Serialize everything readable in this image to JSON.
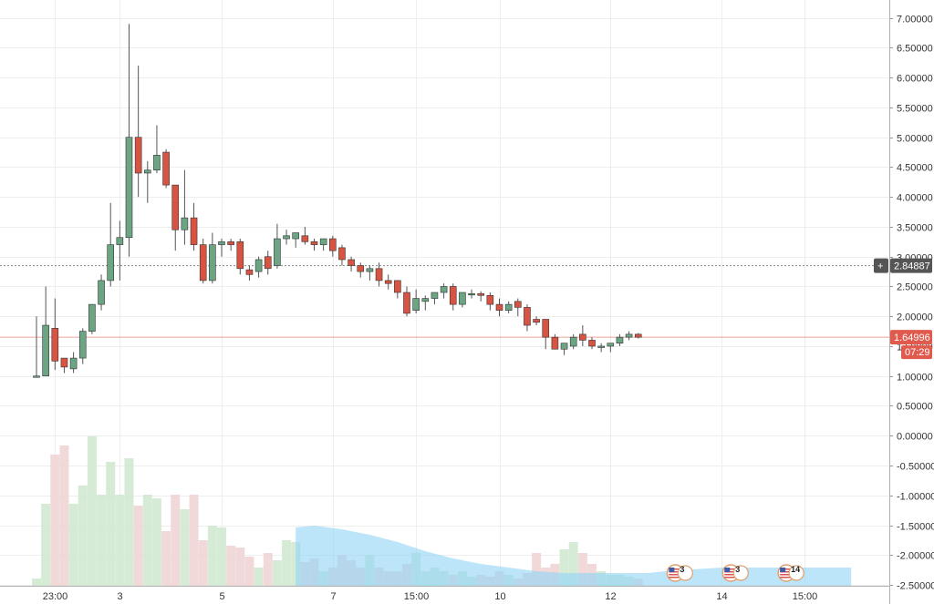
{
  "chart_data": {
    "type": "candlestick",
    "price_axis": {
      "ylim": [
        -2.82,
        7.3
      ],
      "ticks": [
        "7.00000",
        "6.50000",
        "6.00000",
        "5.50000",
        "5.00000",
        "4.50000",
        "4.00000",
        "3.50000",
        "3.00000",
        "2.50000",
        "2.00000",
        "1.50000",
        "1.00000",
        "0.50000",
        "0.00000",
        "-0.50000",
        "-1.00000",
        "-1.50000",
        "-2.00000",
        "-2.50000"
      ]
    },
    "time_axis": {
      "ticks": [
        {
          "i": 2,
          "label": "23:00"
        },
        {
          "i": 9,
          "label": "3"
        },
        {
          "i": 20,
          "label": "5"
        },
        {
          "i": 32,
          "label": "7"
        },
        {
          "i": 41,
          "label": "15:00"
        },
        {
          "i": 50,
          "label": "10"
        },
        {
          "i": 62,
          "label": "12"
        },
        {
          "i": 74,
          "label": "14"
        },
        {
          "i": 83,
          "label": "15:00"
        }
      ]
    },
    "candles": [
      {
        "o": 1.0,
        "h": 2.0,
        "l": 1.0,
        "c": 1.0
      },
      {
        "o": 1.0,
        "h": 2.5,
        "l": 1.0,
        "c": 1.85
      },
      {
        "o": 1.8,
        "h": 2.3,
        "l": 1.1,
        "c": 1.25
      },
      {
        "o": 1.3,
        "h": 1.3,
        "l": 1.05,
        "c": 1.15
      },
      {
        "o": 1.12,
        "h": 1.4,
        "l": 1.05,
        "c": 1.3
      },
      {
        "o": 1.3,
        "h": 1.8,
        "l": 1.2,
        "c": 1.75
      },
      {
        "o": 1.75,
        "h": 2.2,
        "l": 1.7,
        "c": 2.2
      },
      {
        "o": 2.2,
        "h": 2.7,
        "l": 2.1,
        "c": 2.6
      },
      {
        "o": 2.6,
        "h": 3.9,
        "l": 2.5,
        "c": 3.2
      },
      {
        "o": 3.2,
        "h": 3.6,
        "l": 2.6,
        "c": 3.32
      },
      {
        "o": 3.32,
        "h": 6.9,
        "l": 3.0,
        "c": 5.0
      },
      {
        "o": 5.0,
        "h": 6.2,
        "l": 4.0,
        "c": 4.4
      },
      {
        "o": 4.4,
        "h": 4.6,
        "l": 3.9,
        "c": 4.45
      },
      {
        "o": 4.45,
        "h": 5.2,
        "l": 4.4,
        "c": 4.7
      },
      {
        "o": 4.75,
        "h": 4.8,
        "l": 4.15,
        "c": 4.2
      },
      {
        "o": 4.2,
        "h": 4.2,
        "l": 3.1,
        "c": 3.45
      },
      {
        "o": 3.45,
        "h": 4.45,
        "l": 3.2,
        "c": 3.65
      },
      {
        "o": 3.65,
        "h": 3.9,
        "l": 3.1,
        "c": 3.2
      },
      {
        "o": 3.2,
        "h": 3.3,
        "l": 2.55,
        "c": 2.6
      },
      {
        "o": 2.6,
        "h": 3.4,
        "l": 2.55,
        "c": 3.2
      },
      {
        "o": 3.2,
        "h": 3.3,
        "l": 3.0,
        "c": 3.25
      },
      {
        "o": 3.25,
        "h": 3.3,
        "l": 3.1,
        "c": 3.2
      },
      {
        "o": 3.25,
        "h": 3.3,
        "l": 2.7,
        "c": 2.8
      },
      {
        "o": 2.78,
        "h": 2.85,
        "l": 2.6,
        "c": 2.7
      },
      {
        "o": 2.75,
        "h": 3.0,
        "l": 2.65,
        "c": 2.95
      },
      {
        "o": 3.0,
        "h": 3.1,
        "l": 2.7,
        "c": 2.8
      },
      {
        "o": 2.85,
        "h": 3.55,
        "l": 2.8,
        "c": 3.3
      },
      {
        "o": 3.3,
        "h": 3.45,
        "l": 3.2,
        "c": 3.35
      },
      {
        "o": 3.3,
        "h": 3.4,
        "l": 3.15,
        "c": 3.4
      },
      {
        "o": 3.35,
        "h": 3.5,
        "l": 3.2,
        "c": 3.25
      },
      {
        "o": 3.25,
        "h": 3.3,
        "l": 3.1,
        "c": 3.2
      },
      {
        "o": 3.2,
        "h": 3.3,
        "l": 3.1,
        "c": 3.3
      },
      {
        "o": 3.3,
        "h": 3.35,
        "l": 3.0,
        "c": 3.1
      },
      {
        "o": 3.15,
        "h": 3.2,
        "l": 2.85,
        "c": 2.95
      },
      {
        "o": 2.95,
        "h": 3.0,
        "l": 2.75,
        "c": 2.85
      },
      {
        "o": 2.85,
        "h": 2.9,
        "l": 2.65,
        "c": 2.75
      },
      {
        "o": 2.75,
        "h": 2.85,
        "l": 2.6,
        "c": 2.8
      },
      {
        "o": 2.8,
        "h": 2.9,
        "l": 2.5,
        "c": 2.6
      },
      {
        "o": 2.6,
        "h": 2.7,
        "l": 2.45,
        "c": 2.55
      },
      {
        "o": 2.6,
        "h": 2.6,
        "l": 2.3,
        "c": 2.4
      },
      {
        "o": 2.4,
        "h": 2.5,
        "l": 2.0,
        "c": 2.05
      },
      {
        "o": 2.1,
        "h": 2.45,
        "l": 2.05,
        "c": 2.3
      },
      {
        "o": 2.25,
        "h": 2.35,
        "l": 2.1,
        "c": 2.3
      },
      {
        "o": 2.3,
        "h": 2.4,
        "l": 2.2,
        "c": 2.4
      },
      {
        "o": 2.4,
        "h": 2.55,
        "l": 2.3,
        "c": 2.5
      },
      {
        "o": 2.5,
        "h": 2.55,
        "l": 2.1,
        "c": 2.2
      },
      {
        "o": 2.2,
        "h": 2.4,
        "l": 2.15,
        "c": 2.4
      },
      {
        "o": 2.38,
        "h": 2.45,
        "l": 2.3,
        "c": 2.38
      },
      {
        "o": 2.38,
        "h": 2.42,
        "l": 2.25,
        "c": 2.35
      },
      {
        "o": 2.35,
        "h": 2.4,
        "l": 2.1,
        "c": 2.2
      },
      {
        "o": 2.2,
        "h": 2.3,
        "l": 2.0,
        "c": 2.1
      },
      {
        "o": 2.1,
        "h": 2.25,
        "l": 2.05,
        "c": 2.2
      },
      {
        "o": 2.25,
        "h": 2.3,
        "l": 2.0,
        "c": 2.15
      },
      {
        "o": 2.15,
        "h": 2.2,
        "l": 1.75,
        "c": 1.85
      },
      {
        "o": 1.95,
        "h": 2.0,
        "l": 1.85,
        "c": 1.9
      },
      {
        "o": 1.95,
        "h": 1.95,
        "l": 1.45,
        "c": 1.65
      },
      {
        "o": 1.65,
        "h": 1.7,
        "l": 1.45,
        "c": 1.45
      },
      {
        "o": 1.45,
        "h": 1.5,
        "l": 1.35,
        "c": 1.55
      },
      {
        "o": 1.5,
        "h": 1.7,
        "l": 1.45,
        "c": 1.65
      },
      {
        "o": 1.7,
        "h": 1.85,
        "l": 1.5,
        "c": 1.6
      },
      {
        "o": 1.6,
        "h": 1.65,
        "l": 1.45,
        "c": 1.5
      },
      {
        "o": 1.5,
        "h": 1.55,
        "l": 1.4,
        "c": 1.5
      },
      {
        "o": 1.5,
        "h": 1.55,
        "l": 1.4,
        "c": 1.55
      },
      {
        "o": 1.55,
        "h": 1.7,
        "l": 1.5,
        "c": 1.65
      },
      {
        "o": 1.65,
        "h": 1.75,
        "l": 1.6,
        "c": 1.7
      },
      {
        "o": 1.7,
        "h": 1.72,
        "l": 1.63,
        "c": 1.65
      }
    ],
    "volume_bars": [
      0.04,
      0.45,
      0.72,
      0.77,
      0.45,
      0.55,
      0.82,
      0.5,
      0.68,
      0.5,
      0.7,
      0.44,
      0.5,
      0.48,
      0.3,
      0.5,
      0.42,
      0.5,
      0.25,
      0.33,
      0.32,
      0.22,
      0.21,
      0.16,
      0.1,
      0.18,
      0.14,
      0.25,
      0.24,
      0.13,
      0.15,
      0.08,
      0.1,
      0.17,
      0.14,
      0.1,
      0.17,
      0.1,
      0.08,
      0.08,
      0.12,
      0.18,
      0.08,
      0.1,
      0.08,
      0.06,
      0.08,
      0.05,
      0.06,
      0.05,
      0.08,
      0.06,
      0.04,
      0.07,
      0.18,
      0.1,
      0.12,
      0.2,
      0.24,
      0.18,
      0.12,
      0.08,
      0.06,
      0.06,
      0.05,
      0.04
    ],
    "volume_ma_area": [
      [
        28,
        0.32
      ],
      [
        30,
        0.33
      ],
      [
        33,
        0.31
      ],
      [
        36,
        0.28
      ],
      [
        39,
        0.24
      ],
      [
        42,
        0.19
      ],
      [
        45,
        0.15
      ],
      [
        48,
        0.12
      ],
      [
        51,
        0.1
      ],
      [
        54,
        0.08
      ],
      [
        57,
        0.07
      ],
      [
        60,
        0.07
      ],
      [
        63,
        0.07
      ],
      [
        66,
        0.07
      ],
      [
        68,
        0.08
      ],
      [
        71,
        0.09
      ],
      [
        74,
        0.1
      ],
      [
        77,
        0.1
      ],
      [
        80,
        0.1
      ],
      [
        83,
        0.1
      ],
      [
        86,
        0.1
      ],
      [
        88,
        0.1
      ]
    ],
    "last_price": {
      "value": 1.65,
      "label": "1.64996",
      "countdown": "07:29"
    },
    "crosshair": {
      "value": 2.84887,
      "label": "2.84887"
    },
    "event_badges": [
      {
        "i": 69,
        "label": "3"
      },
      {
        "i": 75,
        "label": "3"
      },
      {
        "i": 81,
        "label": "14"
      }
    ],
    "colors": {
      "up": "#6ba583",
      "down": "#d75442",
      "volume_up": "#cfe8cf",
      "volume_down": "#efd2d2",
      "volume_area": "#8fd3f7",
      "grid": "#eeeeee",
      "last_price": "#e05a4e",
      "crosshair_tag": "#555555"
    }
  }
}
